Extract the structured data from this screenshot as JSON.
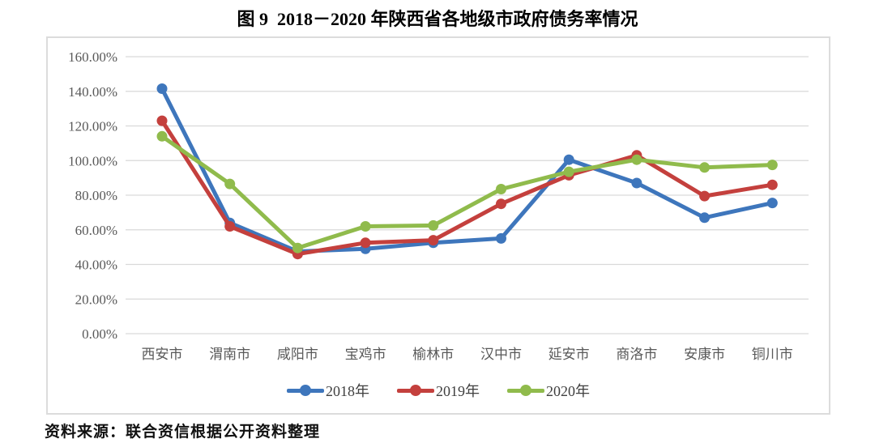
{
  "header": {
    "title": "图 9  2018－2020 年陕西省各地级市政府债务率情况"
  },
  "footer": {
    "source": "资料来源：联合资信根据公开资料整理"
  },
  "colors": {
    "grid": "#D9D9D9",
    "axis_text": "#595959",
    "frame_border": "#DCDCDC"
  },
  "chart_data": {
    "type": "line",
    "title": "图 9  2018－2020 年陕西省各地级市政府债务率情况",
    "xlabel": "",
    "ylabel": "",
    "ylim": [
      0,
      160
    ],
    "y_tick_step": 20,
    "grid": true,
    "legend_position": "bottom",
    "y_ticks": [
      "160.00%",
      "140.00%",
      "120.00%",
      "100.00%",
      "80.00%",
      "60.00%",
      "40.00%",
      "20.00%",
      "0.00%"
    ],
    "categories": [
      "西安市",
      "渭南市",
      "咸阳市",
      "宝鸡市",
      "榆林市",
      "汉中市",
      "延安市",
      "商洛市",
      "安康市",
      "铜川市"
    ],
    "series": [
      {
        "name": "2018年",
        "color": "#3E76BC",
        "values": [
          141.5,
          64,
          47.5,
          49,
          52.5,
          55,
          100.5,
          87,
          67,
          75.5
        ]
      },
      {
        "name": "2019年",
        "color": "#C4403D",
        "values": [
          123,
          62,
          46,
          52.5,
          54,
          75,
          91.5,
          103,
          79.5,
          86
        ]
      },
      {
        "name": "2020年",
        "color": "#90BB4C",
        "values": [
          114,
          86.5,
          49.5,
          62,
          62.5,
          83.5,
          93.5,
          100.5,
          96,
          97.5
        ]
      }
    ]
  }
}
